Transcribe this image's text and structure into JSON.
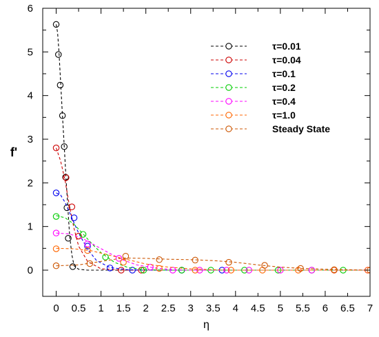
{
  "chart_data": {
    "type": "line",
    "title": "",
    "xlabel": "η",
    "ylabel": "f'",
    "xlim": [
      -0.3,
      7.0
    ],
    "ylim": [
      -0.6,
      6.0
    ],
    "x_ticks": [
      0,
      0.5,
      1,
      1.5,
      2,
      2.5,
      3,
      3.5,
      4,
      4.5,
      5,
      5.5,
      6,
      6.5,
      7
    ],
    "x_tick_labels": [
      "0",
      "0.5",
      "1",
      "1.5",
      "2",
      "2.5",
      "3",
      "3.5",
      "4",
      "4.5",
      "5",
      "5.5",
      "6",
      "6.5",
      "7"
    ],
    "y_ticks": [
      0,
      1,
      2,
      3,
      4,
      5,
      6
    ],
    "y_tick_labels": [
      "0",
      "1",
      "2",
      "3",
      "4",
      "5",
      "6"
    ],
    "grid": false,
    "legend_position": "top-right",
    "series": [
      {
        "name": "τ=0.01",
        "color": "#000000",
        "curve": {
          "x": [
            0,
            0.03,
            0.06,
            0.1,
            0.14,
            0.18,
            0.22,
            0.26,
            0.3,
            0.35,
            0.4,
            0.5,
            0.7,
            1.0,
            7.0
          ],
          "y": [
            5.63,
            5.45,
            5.05,
            4.3,
            3.55,
            2.85,
            2.1,
            1.45,
            0.8,
            0.35,
            0.1,
            0.02,
            0.0,
            0.0,
            0.0
          ]
        },
        "markers": {
          "x": [
            0.0,
            0.05,
            0.09,
            0.14,
            0.18,
            0.21,
            0.24,
            0.27,
            0.37
          ],
          "y": [
            5.63,
            4.94,
            4.24,
            3.54,
            2.83,
            2.13,
            1.43,
            0.73,
            0.08
          ]
        }
      },
      {
        "name": "τ=0.04",
        "color": "#cc0000",
        "curve": {
          "x": [
            0,
            0.1,
            0.2,
            0.3,
            0.4,
            0.5,
            0.7,
            1.0,
            1.5,
            2.0,
            7.0
          ],
          "y": [
            2.8,
            2.5,
            2.05,
            1.45,
            0.95,
            0.55,
            0.2,
            0.03,
            0.0,
            0.0,
            0.0
          ]
        },
        "markers": {
          "x": [
            0.0,
            0.22,
            0.35,
            0.5,
            1.45,
            1.9
          ],
          "y": [
            2.8,
            2.12,
            1.45,
            0.78,
            0.0,
            0.0
          ]
        }
      },
      {
        "name": "τ=0.1",
        "color": "#0000ee",
        "curve": {
          "x": [
            0,
            0.1,
            0.2,
            0.3,
            0.4,
            0.5,
            0.7,
            0.9,
            1.2,
            1.6,
            2.0,
            7.0
          ],
          "y": [
            1.77,
            1.72,
            1.55,
            1.32,
            1.08,
            0.85,
            0.48,
            0.22,
            0.06,
            0.01,
            0.0,
            0.0
          ]
        },
        "markers": {
          "x": [
            0.0,
            0.4,
            0.7,
            1.2,
            1.7,
            2.8,
            3.7
          ],
          "y": [
            1.77,
            1.2,
            0.55,
            0.05,
            0.0,
            0.0,
            0.0
          ]
        }
      },
      {
        "name": "τ=0.2",
        "color": "#00cc00",
        "curve": {
          "x": [
            0,
            0.2,
            0.4,
            0.6,
            0.8,
            1.0,
            1.3,
            1.6,
            2.0,
            2.5,
            3.0,
            7.0
          ],
          "y": [
            1.25,
            1.2,
            1.05,
            0.83,
            0.6,
            0.4,
            0.18,
            0.06,
            0.01,
            0.0,
            0.0,
            0.0
          ]
        },
        "markers": {
          "x": [
            0.0,
            0.6,
            1.1,
            1.95,
            2.8,
            3.45,
            4.2,
            4.95,
            5.7,
            6.4
          ],
          "y": [
            1.23,
            0.82,
            0.3,
            0.0,
            0.0,
            0.0,
            0.0,
            0.0,
            0.0,
            0.0
          ]
        }
      },
      {
        "name": "τ=0.4",
        "color": "#ff00ff",
        "curve": {
          "x": [
            0,
            0.3,
            0.6,
            0.9,
            1.2,
            1.5,
            1.8,
            2.2,
            2.6,
            3.0,
            3.5,
            7.0
          ],
          "y": [
            0.85,
            0.83,
            0.72,
            0.55,
            0.38,
            0.23,
            0.12,
            0.05,
            0.01,
            0.0,
            0.0,
            0.0
          ]
        },
        "markers": {
          "x": [
            0.0,
            0.7,
            1.4,
            2.1,
            2.6,
            3.2,
            3.8,
            4.3,
            5.0,
            5.7,
            6.2,
            6.95
          ],
          "y": [
            0.85,
            0.6,
            0.27,
            0.07,
            0.0,
            0.0,
            0.0,
            0.0,
            0.0,
            0.0,
            0.0,
            0.0
          ]
        }
      },
      {
        "name": "τ=1.0",
        "color": "#ff6600",
        "curve": {
          "x": [
            0,
            0.4,
            0.8,
            1.2,
            1.6,
            2.0,
            2.5,
            3.0,
            3.5,
            4.0,
            4.5,
            5.0,
            7.0
          ],
          "y": [
            0.5,
            0.49,
            0.44,
            0.34,
            0.24,
            0.14,
            0.07,
            0.03,
            0.01,
            0.0,
            0.0,
            0.0,
            0.0
          ]
        },
        "markers": {
          "x": [
            0.0,
            0.7,
            1.5,
            2.3,
            3.1,
            3.9,
            4.6,
            5.4,
            6.2,
            6.95
          ],
          "y": [
            0.49,
            0.45,
            0.18,
            0.04,
            0.0,
            0.0,
            0.0,
            0.0,
            0.0,
            0.0
          ]
        }
      },
      {
        "name": "Steady State",
        "color": "#cc5500",
        "curve": {
          "x": [
            0,
            0.5,
            1.0,
            1.5,
            2.0,
            2.5,
            3.0,
            3.5,
            4.0,
            4.5,
            5.0,
            5.5,
            6.0,
            6.5,
            7.0
          ],
          "y": [
            0.1,
            0.12,
            0.2,
            0.28,
            0.27,
            0.25,
            0.24,
            0.22,
            0.18,
            0.12,
            0.07,
            0.04,
            0.02,
            0.01,
            0.0
          ]
        },
        "markers": {
          "x": [
            0.0,
            0.75,
            1.55,
            2.3,
            3.1,
            3.85,
            4.65,
            5.45,
            6.2,
            7.0
          ],
          "y": [
            0.1,
            0.15,
            0.32,
            0.24,
            0.23,
            0.18,
            0.11,
            0.04,
            0.01,
            0.0
          ]
        }
      }
    ]
  }
}
